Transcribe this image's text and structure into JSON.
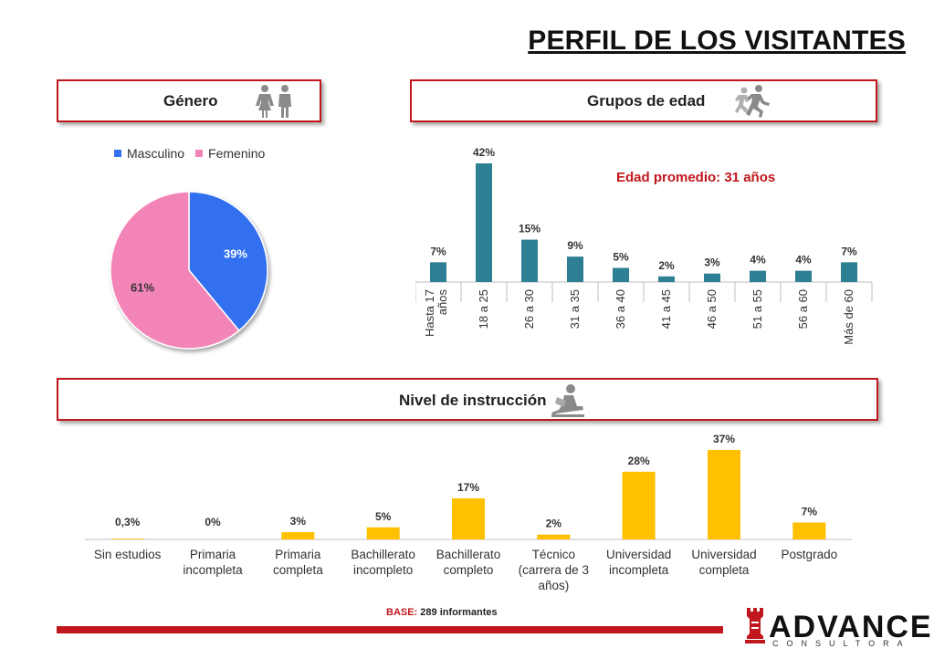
{
  "page": {
    "title": "PERFIL DE LOS VISITANTES",
    "base_label": "BASE:",
    "base_value": " 289 informantes",
    "logo_main": "ADVANCE",
    "logo_sub": "CONSULTORA"
  },
  "sections": {
    "gender": {
      "label": "Género",
      "icon": "man-woman-icon"
    },
    "age": {
      "label": "Grupos de edad",
      "icon": "running-people-icon",
      "average": "Edad promedio: 31 años"
    },
    "education": {
      "label": "Nivel de instrucción",
      "icon": "reading-person-icon"
    }
  },
  "colors": {
    "accent_red": "#c0161d",
    "masculino": "#3370f0",
    "femenino": "#f384b8",
    "age_bar": "#2e7f94",
    "edu_bar": "#ffc000"
  },
  "chart_data": [
    {
      "type": "pie",
      "labels": [
        "Masculino",
        "Femenino"
      ],
      "values": [
        39,
        61
      ],
      "data_labels": [
        "39%",
        "61%"
      ],
      "legend_position": "top"
    },
    {
      "type": "bar",
      "categories": [
        "Hasta 17 años",
        "18 a 25",
        "26 a 30",
        "31 a 35",
        "36 a 40",
        "41 a 45",
        "46 a 50",
        "51 a 55",
        "56 a 60",
        "Más de 60"
      ],
      "values": [
        7,
        42,
        15,
        9,
        5,
        2,
        3,
        4,
        4,
        7
      ],
      "data_labels": [
        "7%",
        "42%",
        "15%",
        "9%",
        "5%",
        "2%",
        "3%",
        "4%",
        "4%",
        "7%"
      ],
      "ylim": [
        0,
        42
      ]
    },
    {
      "type": "bar",
      "categories": [
        "Sin estudios",
        "Primaria incompleta",
        "Primaria completa",
        "Bachillerato incompleto",
        "Bachillerato completo",
        "Técnico (carrera de 3 años)",
        "Universidad incompleta",
        "Universidad completa",
        "Postgrado"
      ],
      "category_lines": [
        [
          "Sin estudios"
        ],
        [
          "Primaria",
          "incompleta"
        ],
        [
          "Primaria",
          "completa"
        ],
        [
          "Bachillerato",
          "incompleto"
        ],
        [
          "Bachillerato",
          "completo"
        ],
        [
          "Técnico",
          "(carrera de 3",
          "años)"
        ],
        [
          "Universidad",
          "incompleta"
        ],
        [
          "Universidad",
          "completa"
        ],
        [
          "Postgrado"
        ]
      ],
      "values": [
        0.3,
        0,
        3,
        5,
        17,
        2,
        28,
        37,
        7
      ],
      "data_labels": [
        "0,3%",
        "0%",
        "3%",
        "5%",
        "17%",
        "2%",
        "28%",
        "37%",
        "7%"
      ],
      "ylim": [
        0,
        37
      ]
    }
  ]
}
